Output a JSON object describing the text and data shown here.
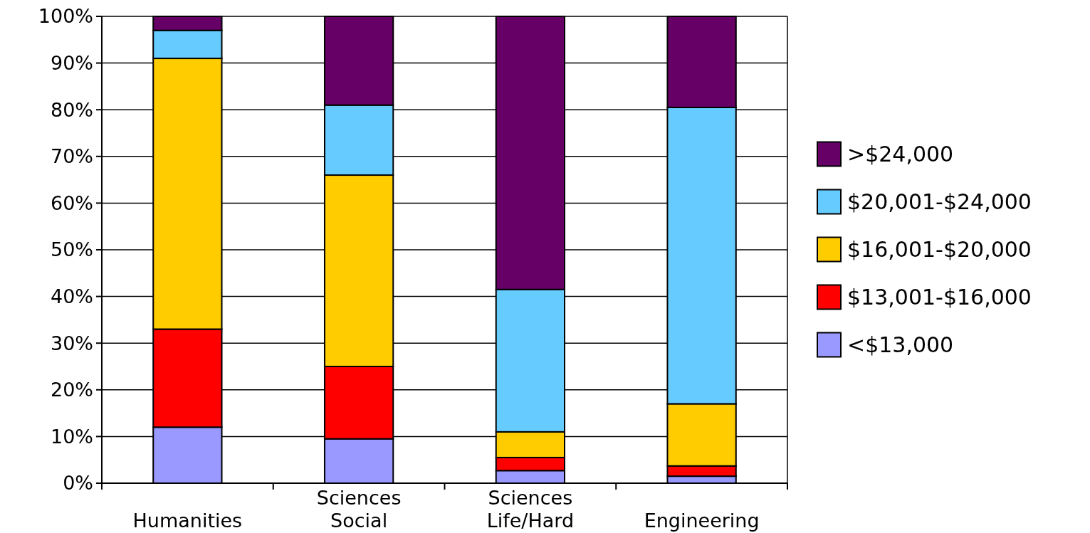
{
  "chart_data": {
    "type": "bar",
    "stacked": true,
    "categories": [
      "Humanities",
      "Sciences\nSocial",
      "Sciences\nLife/Hard",
      "Engineering"
    ],
    "series": [
      {
        "name": "<$13,000",
        "color": "#9999ff",
        "values": [
          12,
          9.5,
          2.7,
          1.5
        ]
      },
      {
        "name": "$13,001-$16,000",
        "color": "#ff0000",
        "values": [
          21,
          15.5,
          2.8,
          2.2
        ]
      },
      {
        "name": "$16,001-$20,000",
        "color": "#ffcc00",
        "values": [
          58,
          41,
          5.5,
          13.3
        ]
      },
      {
        "name": "$20,001-$24,000",
        "color": "#66ccff",
        "values": [
          6,
          15,
          30.5,
          63.5
        ]
      },
      {
        "name": ">$24,000",
        "color": "#660066",
        "values": [
          3,
          19,
          58.5,
          19.5
        ]
      }
    ],
    "ylim": [
      0,
      100
    ],
    "yticks": [
      {
        "value": 0,
        "label": "0%"
      },
      {
        "value": 10,
        "label": "10%"
      },
      {
        "value": 20,
        "label": "20%"
      },
      {
        "value": 30,
        "label": "30%"
      },
      {
        "value": 40,
        "label": "40%"
      },
      {
        "value": 50,
        "label": "50%"
      },
      {
        "value": 60,
        "label": "60%"
      },
      {
        "value": 70,
        "label": "70%"
      },
      {
        "value": 80,
        "label": "80%"
      },
      {
        "value": 90,
        "label": "90%"
      },
      {
        "value": 100,
        "label": "100%"
      }
    ],
    "grid": "y",
    "legend": "right"
  }
}
